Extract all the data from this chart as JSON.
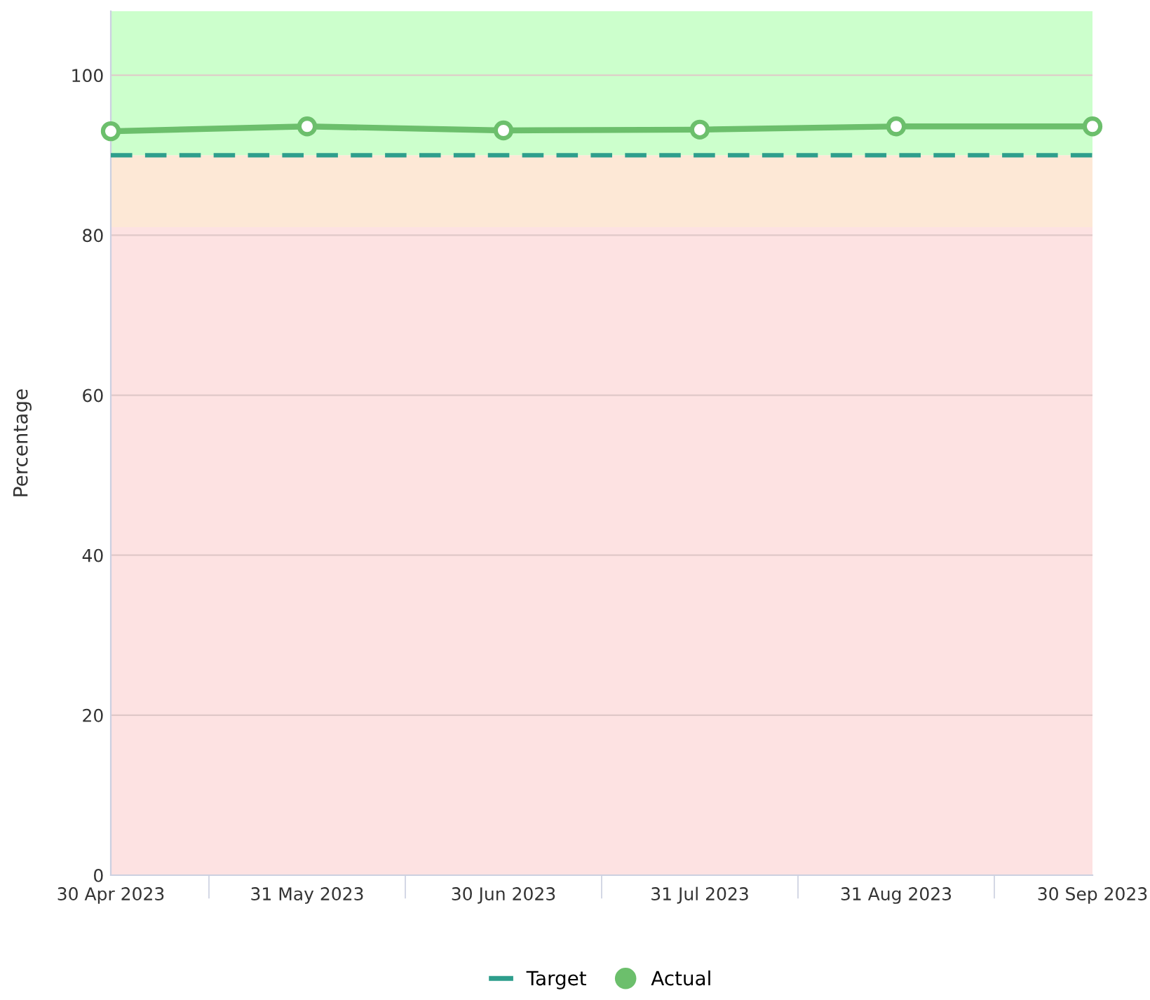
{
  "chart_data": {
    "type": "line",
    "ylabel": "Percentage",
    "categories": [
      "30 Apr 2023",
      "31 May 2023",
      "30 Jun 2023",
      "31 Jul 2023",
      "31 Aug 2023",
      "30 Sep 2023"
    ],
    "series": [
      {
        "name": "Target",
        "color": "#2e9e8c",
        "values": [
          90,
          90,
          90,
          90,
          90,
          90
        ],
        "line_style": "dashed",
        "marker": "none"
      },
      {
        "name": "Actual",
        "color": "#6cbf6c",
        "values": [
          93.0,
          93.6,
          93.1,
          93.2,
          93.6,
          93.6
        ],
        "line_style": "solid",
        "marker": "circle"
      }
    ],
    "bands": [
      {
        "axis": "y",
        "from": 0,
        "to": 81,
        "color": "#fde2e2"
      },
      {
        "axis": "y",
        "from": 81,
        "to": 90,
        "color": "#fde8d6"
      },
      {
        "axis": "y",
        "from": 90,
        "to": 108,
        "color": "#ccffcc"
      }
    ],
    "ylim": [
      0,
      108
    ],
    "yticks": [
      0,
      20,
      40,
      60,
      80,
      100
    ],
    "grid": "y",
    "legend": "bottom"
  }
}
